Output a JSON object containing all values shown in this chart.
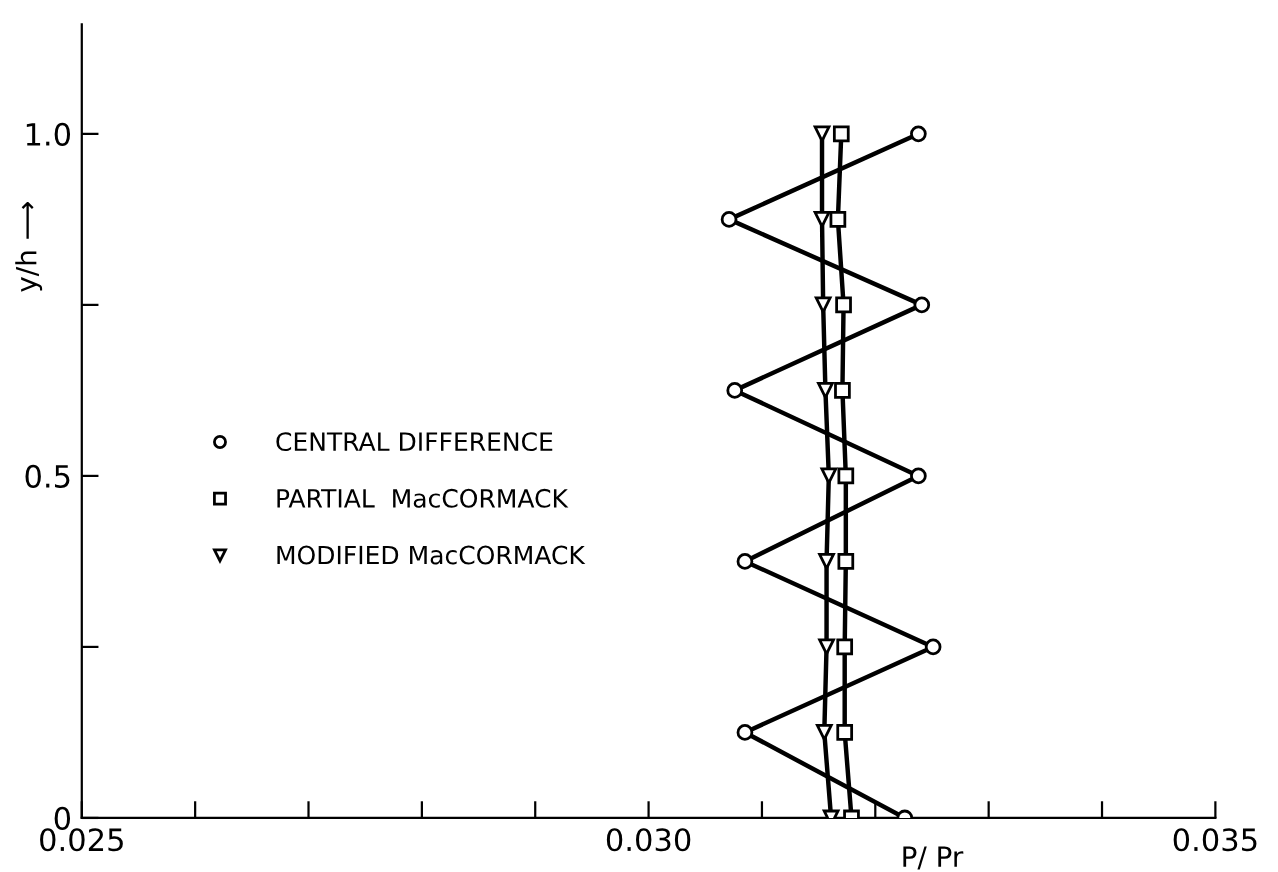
{
  "chart_data": {
    "type": "line",
    "xlabel": "P/ Pr",
    "ylabel": "y/h ⟶",
    "xlim": [
      0.025,
      0.035
    ],
    "ylim": [
      0,
      1.16
    ],
    "xticks": [
      0.025,
      {
        "value": 0.026,
        "label": null
      },
      {
        "value": 0.027,
        "label": null
      },
      {
        "value": 0.028,
        "label": null
      },
      {
        "value": 0.029,
        "label": null
      },
      {
        "value": 0.03,
        "label": "0.030"
      },
      {
        "value": 0.031,
        "label": null
      },
      {
        "value": 0.032,
        "label": null
      },
      {
        "value": 0.033,
        "label": null
      },
      {
        "value": 0.034,
        "label": null
      },
      0.035
    ],
    "yticks": [
      0,
      {
        "value": 0.25,
        "label": null
      },
      0.5,
      {
        "value": 0.75,
        "label": null
      },
      {
        "value": 1.0,
        "label": "1.0"
      }
    ],
    "grid": false,
    "legend": "left",
    "line_style": "solid",
    "series": [
      {
        "name": "CENTRAL DIFFERENCE",
        "color": "#000000",
        "marker": "circle",
        "x": [
          0.03226,
          0.03085,
          0.03251,
          0.03085,
          0.03238,
          0.03076,
          0.03241,
          0.03071,
          0.03238
        ],
        "values": [
          0,
          0.125,
          0.25,
          0.375,
          0.5,
          0.625,
          0.75,
          0.875,
          1.0
        ]
      },
      {
        "name": "PARTIAL  MacCORMACK",
        "color": "#000000",
        "marker": "square",
        "x": [
          0.03179,
          0.03173,
          0.03173,
          0.03174,
          0.03174,
          0.03171,
          0.03172,
          0.03167,
          0.0317
        ],
        "values": [
          0,
          0.125,
          0.25,
          0.375,
          0.5,
          0.625,
          0.75,
          0.875,
          1.0
        ]
      },
      {
        "name": "MODIFIED MacCORMACK",
        "color": "#000000",
        "marker": "triangle",
        "x": [
          0.03161,
          0.03155,
          0.03157,
          0.03157,
          0.03159,
          0.03156,
          0.03154,
          0.03153,
          0.03153
        ],
        "values": [
          0,
          0.125,
          0.25,
          0.375,
          0.5,
          0.625,
          0.75,
          0.875,
          1.0
        ]
      }
    ]
  }
}
